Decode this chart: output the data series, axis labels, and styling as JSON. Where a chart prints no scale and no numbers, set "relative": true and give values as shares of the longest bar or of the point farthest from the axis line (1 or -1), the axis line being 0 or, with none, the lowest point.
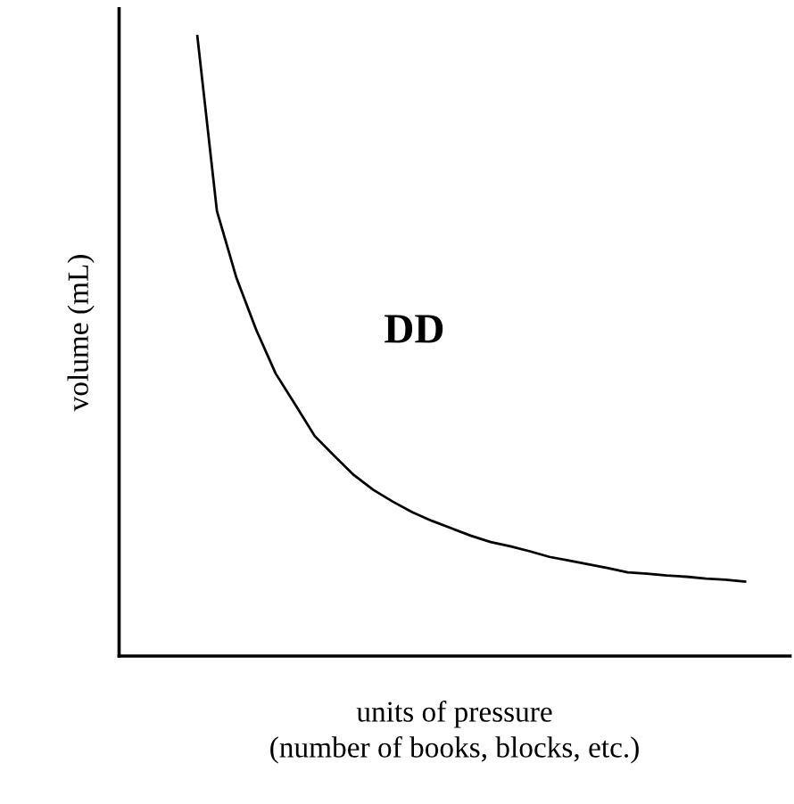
{
  "chart_data": {
    "type": "line",
    "relative": true,
    "xlabel": "units of pressure\n(number of books, blocks, etc.)",
    "ylabel": "volume (mL)",
    "annotations": [
      "DD"
    ],
    "categories": [
      null,
      null,
      null,
      null,
      null,
      null,
      null,
      null,
      null,
      null,
      null,
      null,
      null,
      null,
      null,
      null,
      null,
      null,
      null,
      null,
      null,
      null,
      null,
      null,
      null,
      null,
      null,
      null,
      null,
      null,
      null,
      null,
      null,
      null,
      null
    ],
    "series": [
      {
        "color": "#000000",
        "values": [
          null,
          null,
          null,
          null,
          1,
          0.718,
          0.61,
          0.527,
          0.456,
          0.406,
          0.355,
          0.323,
          0.292,
          0.268,
          0.249,
          0.232,
          0.218,
          0.206,
          0.194,
          0.184,
          0.177,
          0.169,
          0.16,
          0.154,
          0.148,
          0.142,
          0.135,
          0.133,
          0.13,
          0.128,
          0.125,
          0.123,
          0.12,
          null,
          null
        ]
      }
    ],
    "marker": "none",
    "line_style": "solid"
  }
}
